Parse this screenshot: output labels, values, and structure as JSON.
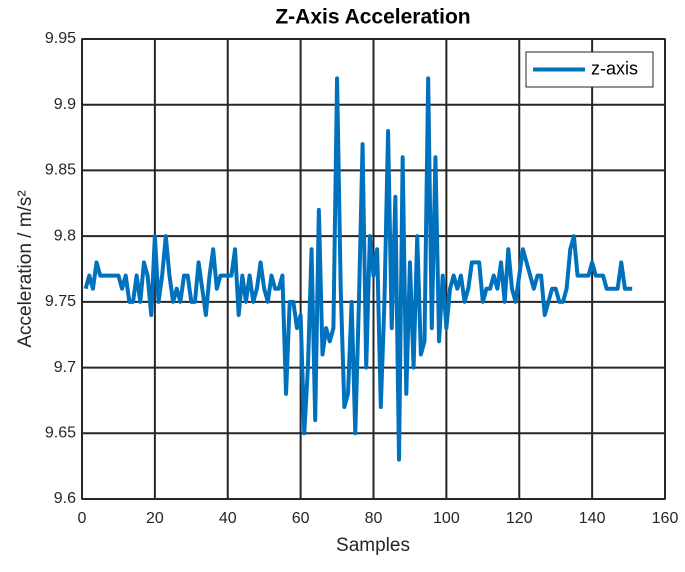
{
  "chart_data": {
    "type": "line",
    "title": "Z-Axis Acceleration",
    "xlabel": "Samples",
    "ylabel": "Acceleration / m/s²",
    "x": [
      1,
      2,
      3,
      4,
      5,
      6,
      7,
      8,
      9,
      10,
      11,
      12,
      13,
      14,
      15,
      16,
      17,
      18,
      19,
      20,
      21,
      22,
      23,
      24,
      25,
      26,
      27,
      28,
      29,
      30,
      31,
      32,
      33,
      34,
      35,
      36,
      37,
      38,
      39,
      40,
      41,
      42,
      43,
      44,
      45,
      46,
      47,
      48,
      49,
      50,
      51,
      52,
      53,
      54,
      55,
      56,
      57,
      58,
      59,
      60,
      61,
      62,
      63,
      64,
      65,
      66,
      67,
      68,
      69,
      70,
      71,
      72,
      73,
      74,
      75,
      76,
      77,
      78,
      79,
      80,
      81,
      82,
      83,
      84,
      85,
      86,
      87,
      88,
      89,
      90,
      91,
      92,
      93,
      94,
      95,
      96,
      97,
      98,
      99,
      100,
      101,
      102,
      103,
      104,
      105,
      106,
      107,
      108,
      109,
      110,
      111,
      112,
      113,
      114,
      115,
      116,
      117,
      118,
      119,
      120,
      121,
      122,
      123,
      124,
      125,
      126,
      127,
      128,
      129,
      130,
      131,
      132,
      133,
      134,
      135,
      136,
      137,
      138,
      139,
      140,
      141,
      142,
      143,
      144,
      145,
      146,
      147,
      148,
      149,
      150,
      151
    ],
    "series": [
      {
        "name": "z-axis",
        "color": "#0072bd",
        "values": [
          9.76,
          9.77,
          9.76,
          9.78,
          9.77,
          9.77,
          9.77,
          9.77,
          9.77,
          9.77,
          9.76,
          9.77,
          9.75,
          9.75,
          9.77,
          9.75,
          9.78,
          9.77,
          9.74,
          9.8,
          9.75,
          9.77,
          9.8,
          9.77,
          9.75,
          9.76,
          9.75,
          9.77,
          9.77,
          9.75,
          9.75,
          9.78,
          9.76,
          9.74,
          9.77,
          9.79,
          9.76,
          9.77,
          9.77,
          9.77,
          9.77,
          9.79,
          9.74,
          9.77,
          9.75,
          9.77,
          9.75,
          9.76,
          9.78,
          9.76,
          9.75,
          9.77,
          9.76,
          9.76,
          9.77,
          9.68,
          9.75,
          9.75,
          9.73,
          9.74,
          9.65,
          9.7,
          9.79,
          9.66,
          9.82,
          9.71,
          9.73,
          9.72,
          9.73,
          9.92,
          9.76,
          9.67,
          9.68,
          9.75,
          9.65,
          9.75,
          9.87,
          9.7,
          9.8,
          9.77,
          9.79,
          9.67,
          9.75,
          9.88,
          9.73,
          9.83,
          9.63,
          9.86,
          9.68,
          9.78,
          9.7,
          9.8,
          9.71,
          9.72,
          9.92,
          9.73,
          9.86,
          9.72,
          9.77,
          9.73,
          9.76,
          9.77,
          9.76,
          9.77,
          9.75,
          9.76,
          9.78,
          9.78,
          9.78,
          9.75,
          9.76,
          9.76,
          9.77,
          9.76,
          9.78,
          9.75,
          9.79,
          9.76,
          9.75,
          9.77,
          9.79,
          9.78,
          9.77,
          9.76,
          9.77,
          9.77,
          9.74,
          9.75,
          9.76,
          9.76,
          9.75,
          9.75,
          9.76,
          9.79,
          9.8,
          9.77,
          9.77,
          9.77,
          9.77,
          9.78,
          9.77,
          9.77,
          9.77,
          9.76,
          9.76,
          9.76,
          9.76,
          9.78,
          9.76,
          9.76,
          9.76
        ]
      }
    ],
    "xlim": [
      0,
      160
    ],
    "xticks": [
      0,
      20,
      40,
      60,
      80,
      100,
      120,
      140,
      160
    ],
    "ylim": [
      9.6,
      9.95
    ],
    "yticks": [
      9.6,
      9.65,
      9.7,
      9.75,
      9.8,
      9.85,
      9.9,
      9.95
    ],
    "grid": true,
    "legend": "northeast"
  }
}
